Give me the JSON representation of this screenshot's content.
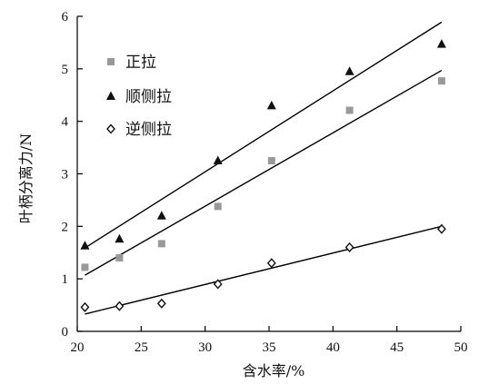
{
  "chart_data": {
    "type": "scatter",
    "title": "",
    "xlabel": "含水率/%",
    "ylabel": "叶柄分离力/N",
    "xlim": [
      20,
      50
    ],
    "ylim": [
      0,
      6
    ],
    "xticks": [
      20,
      25,
      30,
      35,
      40,
      45,
      50
    ],
    "yticks": [
      0,
      1,
      2,
      3,
      4,
      5,
      6
    ],
    "grid": false,
    "legend_position": "top-left",
    "series": [
      {
        "name": "正拉",
        "marker": "square",
        "color": "#999999",
        "points": [
          [
            20.6,
            1.22
          ],
          [
            23.3,
            1.4
          ],
          [
            26.6,
            1.67
          ],
          [
            31.0,
            2.38
          ],
          [
            35.2,
            3.25
          ],
          [
            41.3,
            4.21
          ],
          [
            48.5,
            4.77
          ]
        ],
        "trendline": [
          [
            20.6,
            1.07
          ],
          [
            48.5,
            4.97
          ]
        ]
      },
      {
        "name": "顺侧拉",
        "marker": "triangle",
        "color": "#111111",
        "points": [
          [
            20.6,
            1.63
          ],
          [
            23.3,
            1.76
          ],
          [
            26.6,
            2.2
          ],
          [
            31.0,
            3.25
          ],
          [
            35.2,
            4.3
          ],
          [
            41.3,
            4.95
          ],
          [
            48.5,
            5.47
          ]
        ],
        "trendline": [
          [
            20.6,
            1.59
          ],
          [
            48.5,
            5.89
          ]
        ]
      },
      {
        "name": "逆侧拉",
        "marker": "diamond",
        "color": "#111111",
        "points": [
          [
            20.6,
            0.46
          ],
          [
            23.3,
            0.48
          ],
          [
            26.6,
            0.53
          ],
          [
            31.0,
            0.9
          ],
          [
            35.2,
            1.3
          ],
          [
            41.3,
            1.6
          ],
          [
            48.5,
            1.95
          ]
        ],
        "trendline": [
          [
            20.6,
            0.33
          ],
          [
            48.5,
            2.0
          ]
        ]
      }
    ]
  }
}
